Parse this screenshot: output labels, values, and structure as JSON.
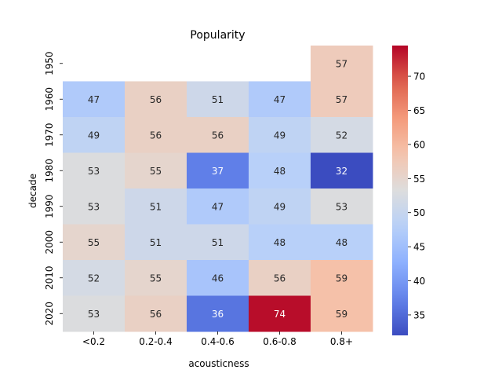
{
  "chart_data": {
    "type": "heatmap",
    "title": "Popularity",
    "xlabel": "acousticness",
    "ylabel": "decade",
    "x_categories": [
      "<0.2",
      "0.2-0.4",
      "0.4-0.6",
      "0.6-0.8",
      "0.8+"
    ],
    "y_categories": [
      "1950",
      "1960",
      "1970",
      "1980",
      "1990",
      "2000",
      "2010",
      "2020"
    ],
    "values": [
      [
        null,
        null,
        null,
        null,
        57
      ],
      [
        47,
        56,
        51,
        47,
        57
      ],
      [
        49,
        56,
        56,
        49,
        52
      ],
      [
        53,
        55,
        37,
        48,
        32
      ],
      [
        53,
        51,
        47,
        49,
        53
      ],
      [
        55,
        51,
        51,
        48,
        48
      ],
      [
        52,
        55,
        46,
        56,
        59
      ],
      [
        53,
        56,
        36,
        74,
        59
      ]
    ],
    "colormap": "coolwarm",
    "vmin": 32,
    "vmax": 74.5,
    "colorbar_ticks": [
      35,
      40,
      45,
      50,
      55,
      60,
      65,
      70
    ],
    "annotated": true
  }
}
